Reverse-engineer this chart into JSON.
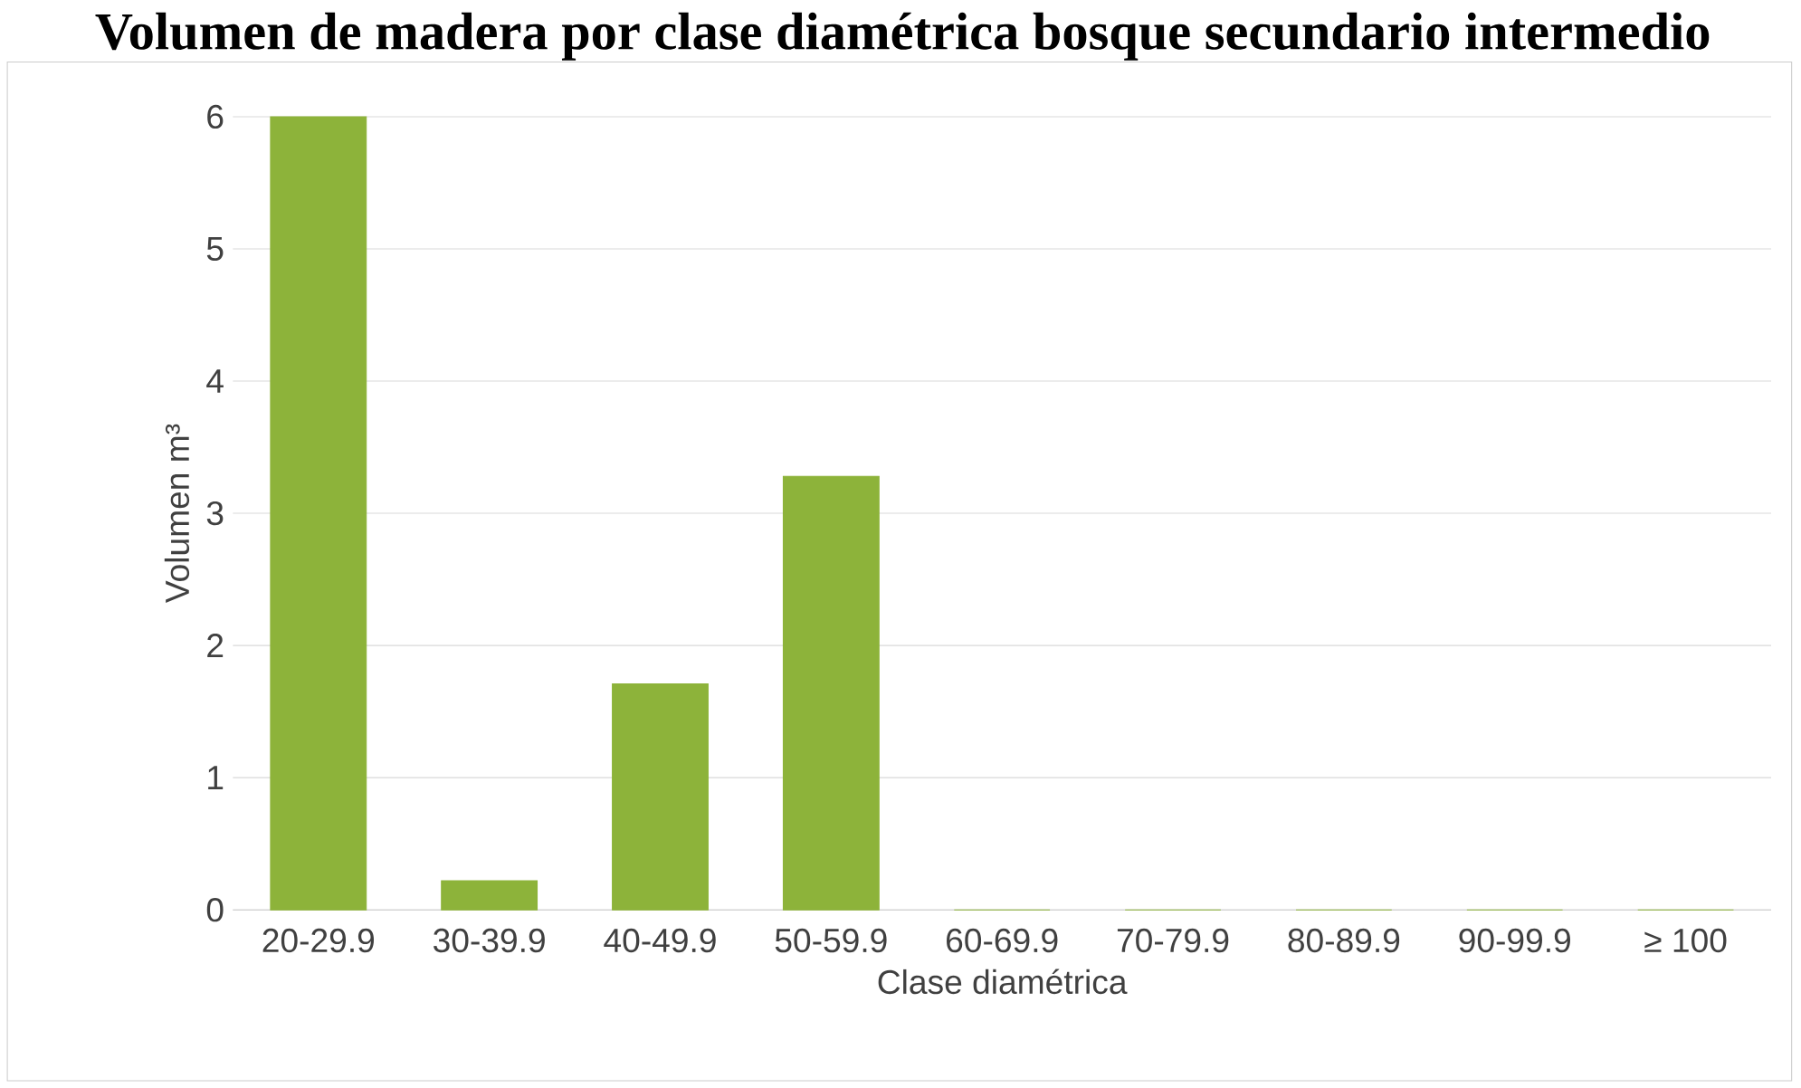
{
  "chart_data": {
    "type": "bar",
    "title": "Volumen de madera por clase diamétrica bosque secundario intermedio",
    "xlabel": "Clase diamétrica",
    "ylabel": "Volumen m³",
    "categories": [
      "20-29.9",
      "30-39.9",
      "40-49.9",
      "50-59.9",
      "60-69.9",
      "70-79.9",
      "80-89.9",
      "90-99.9",
      "≥ 100"
    ],
    "values": [
      6.0,
      0.22,
      1.71,
      3.28,
      0,
      0,
      0,
      0,
      0
    ],
    "color": "#8db33a",
    "ylim": [
      0,
      6
    ],
    "yticks": [
      0,
      1,
      2,
      3,
      4,
      5,
      6
    ],
    "grid": "y"
  }
}
